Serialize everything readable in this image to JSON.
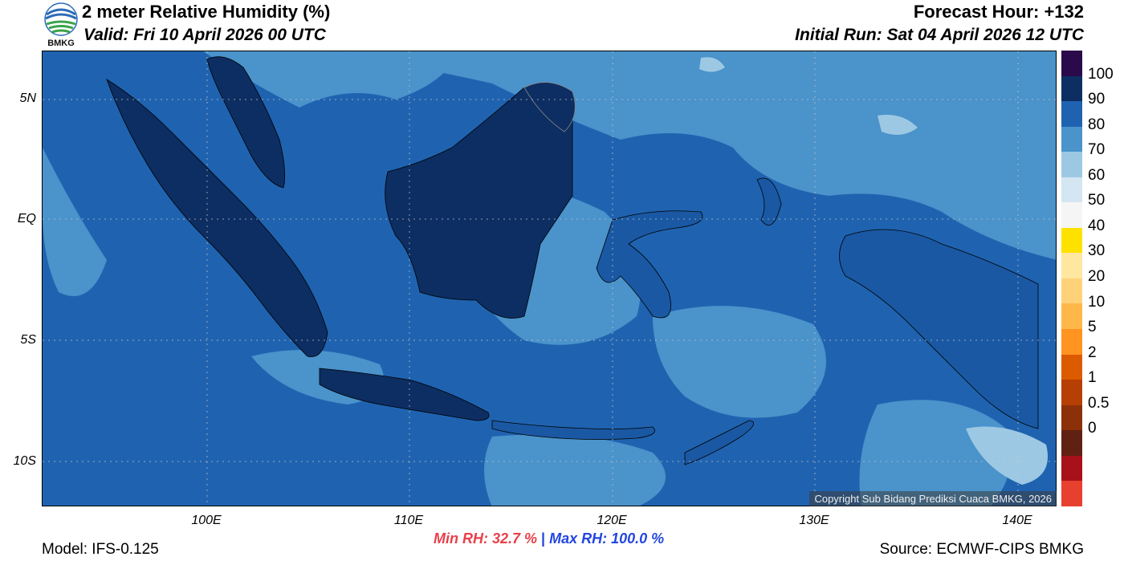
{
  "header": {
    "title": "2 meter Relative Humidity (%)",
    "valid": "Valid: Fri 10 April 2026 00 UTC",
    "forecast_hour": "Forecast Hour: +132",
    "initial_run": "Initial Run: Sat 04 April 2026 12 UTC"
  },
  "logo": {
    "text": "BMKG"
  },
  "map": {
    "lat_labels": [
      "5N",
      "EQ",
      "5S",
      "10S"
    ],
    "lon_labels": [
      "100E",
      "110E",
      "120E",
      "130E",
      "140E"
    ],
    "copyright": "Copyright Sub Bidang Prediksi Cuaca BMKG, 2026"
  },
  "colorbar": {
    "labels": [
      "100",
      "90",
      "80",
      "70",
      "60",
      "50",
      "40",
      "30",
      "20",
      "10",
      "5",
      "2",
      "1",
      "0.5",
      "0"
    ],
    "colors": [
      "#2a0a4a",
      "#0d2e62",
      "#1f63b0",
      "#4a93cb",
      "#9dc8e4",
      "#d3e6f2",
      "#f5f5f5",
      "#ffe100",
      "#ffe7a0",
      "#ffd27a",
      "#ffb74a",
      "#ff9420",
      "#dc5a00",
      "#b63f04",
      "#8c300a",
      "#612112",
      "#a8101a",
      "#e8402e"
    ]
  },
  "footer": {
    "model": "Model: IFS-0.125",
    "source": "Source: ECMWF-CIPS BMKG",
    "min_rh": "Min RH:  32.7 %",
    "separator": "|",
    "max_rh": "Max RH: 100.0 %"
  }
}
